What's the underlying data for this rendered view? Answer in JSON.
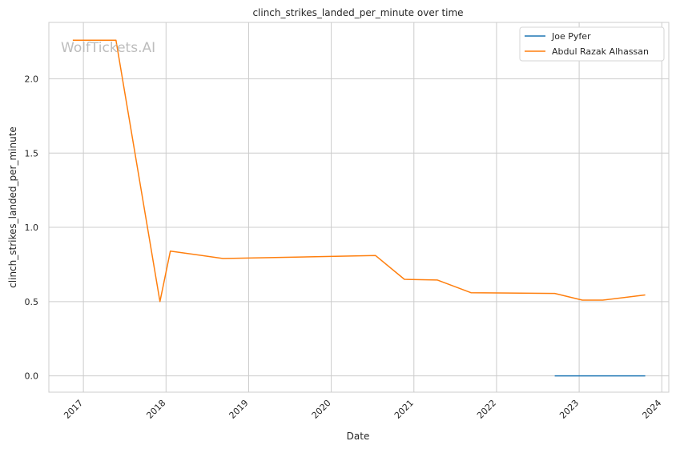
{
  "chart_data": {
    "type": "line",
    "title": "clinch_strikes_landed_per_minute over time",
    "xlabel": "Date",
    "ylabel": "clinch_strikes_landed_per_minute",
    "watermark": "WolfTickets.AI",
    "xlim": [
      "2016-08-01",
      "2024-02-01"
    ],
    "ylim": [
      -0.11,
      2.38
    ],
    "x_ticks": [
      "2017",
      "2018",
      "2019",
      "2020",
      "2021",
      "2022",
      "2023",
      "2024"
    ],
    "y_ticks": [
      "0.0",
      "0.5",
      "1.0",
      "1.5",
      "2.0"
    ],
    "grid": true,
    "legend_position": "top-right",
    "series": [
      {
        "name": "Joe Pyfer",
        "color": "#1f77b4",
        "points": [
          {
            "x": "2022-09-15",
            "y": 0.0
          },
          {
            "x": "2023-10-20",
            "y": 0.0
          }
        ]
      },
      {
        "name": "Abdul Razak Alhassan",
        "color": "#ff7f0e",
        "points": [
          {
            "x": "2016-11-15",
            "y": 2.26
          },
          {
            "x": "2017-05-25",
            "y": 2.26
          },
          {
            "x": "2017-12-05",
            "y": 0.5
          },
          {
            "x": "2018-01-20",
            "y": 0.84
          },
          {
            "x": "2018-09-10",
            "y": 0.79
          },
          {
            "x": "2020-07-15",
            "y": 0.81
          },
          {
            "x": "2020-11-20",
            "y": 0.65
          },
          {
            "x": "2021-04-15",
            "y": 0.645
          },
          {
            "x": "2021-09-10",
            "y": 0.56
          },
          {
            "x": "2022-09-15",
            "y": 0.555
          },
          {
            "x": "2023-01-15",
            "y": 0.51
          },
          {
            "x": "2023-04-15",
            "y": 0.51
          },
          {
            "x": "2023-10-20",
            "y": 0.545
          }
        ]
      }
    ]
  }
}
